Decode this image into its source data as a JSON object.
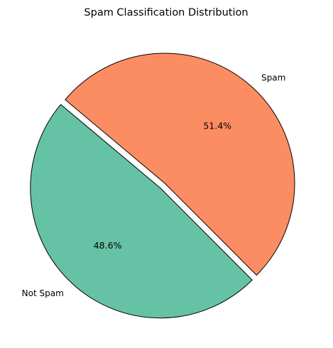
{
  "chart_data": {
    "type": "pie",
    "title": "Spam Classification Distribution",
    "slices": [
      {
        "label": "Not Spam",
        "value": 48.6,
        "pct_label": "48.6%",
        "color": "#66c2a5",
        "explode": 0.05
      },
      {
        "label": "Spam",
        "value": 51.4,
        "pct_label": "51.4%",
        "color": "#fc8d62",
        "explode": 0
      }
    ],
    "start_angle_deg": 140,
    "direction": "counterclockwise",
    "edge_color": "#000000",
    "legend": "none"
  }
}
